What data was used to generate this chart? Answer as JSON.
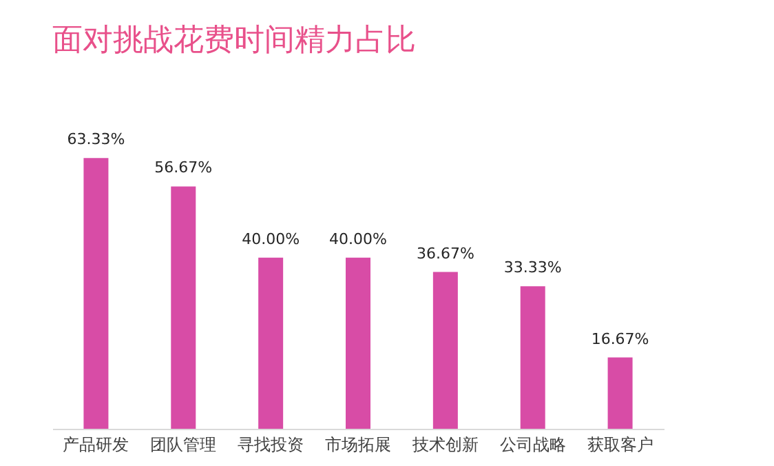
{
  "chart_data": {
    "type": "bar",
    "title": "面对挑战花费时间精力占比",
    "categories": [
      "产品研发",
      "团队管理",
      "寻找投资",
      "市场拓展",
      "技术创新",
      "公司战略",
      "获取客户"
    ],
    "values": [
      63.33,
      56.67,
      40.0,
      40.0,
      36.67,
      33.33,
      16.67
    ],
    "value_labels": [
      "63.33%",
      "56.67%",
      "40.00%",
      "40.00%",
      "36.67%",
      "33.33%",
      "16.67%"
    ],
    "color": "#d84ca6"
  }
}
